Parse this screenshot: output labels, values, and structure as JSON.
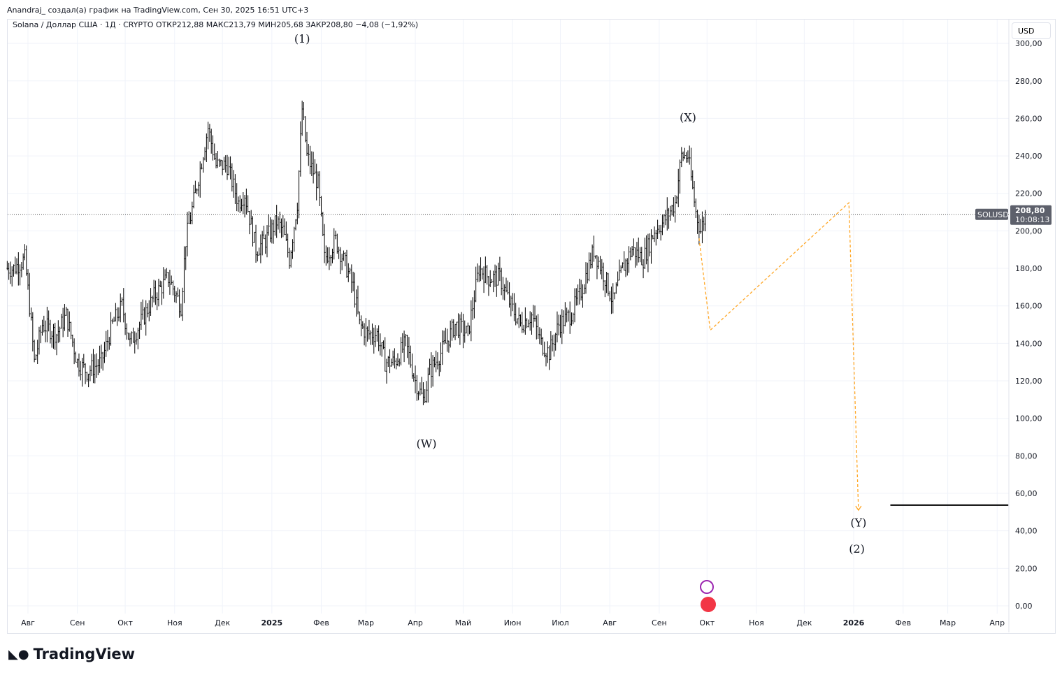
{
  "header": "Anandraj_ создал(а) график на TradingView.com, Сен 30, 2025 16:51 UTC+3",
  "legend": "Solana / Доллар США · 1Д · CRYPTO  ОТКР212,88  МАКС213,79  МИН205,68  ЗАКР208,80  −4,08 (−1,92%)",
  "currency": "USD",
  "logo": "TradingView",
  "chart_data": {
    "type": "ohlc-bar",
    "symbol": "SOLUSD",
    "last_price": "208,80",
    "countdown": "10:08:13",
    "x_unit": "days since 2024-08-01",
    "ylim": [
      0,
      300
    ],
    "y_ticks": [
      "0,00",
      "20,00",
      "40,00",
      "60,00",
      "80,00",
      "100,00",
      "120,00",
      "140,00",
      "160,00",
      "180,00",
      "200,00",
      "220,00",
      "240,00",
      "260,00",
      "280,00",
      "300,00"
    ],
    "x_ticks": [
      {
        "d": 0,
        "l": "Авг"
      },
      {
        "d": 31,
        "l": "Сен"
      },
      {
        "d": 61,
        "l": "Окт"
      },
      {
        "d": 92,
        "l": "Ноя"
      },
      {
        "d": 122,
        "l": "Дек"
      },
      {
        "d": 153,
        "l": "2025",
        "b": true
      },
      {
        "d": 184,
        "l": "Фев"
      },
      {
        "d": 212,
        "l": "Мар"
      },
      {
        "d": 243,
        "l": "Апр"
      },
      {
        "d": 273,
        "l": "Май"
      },
      {
        "d": 304,
        "l": "Июн"
      },
      {
        "d": 334,
        "l": "Июл"
      },
      {
        "d": 365,
        "l": "Авг"
      },
      {
        "d": 396,
        "l": "Сен"
      },
      {
        "d": 426,
        "l": "Окт"
      },
      {
        "d": 457,
        "l": "Ноя"
      },
      {
        "d": 487,
        "l": "Дек"
      },
      {
        "d": 518,
        "l": "2026",
        "b": true
      },
      {
        "d": 549,
        "l": "Фев"
      },
      {
        "d": 577,
        "l": "Мар"
      },
      {
        "d": 608,
        "l": "Апр"
      }
    ],
    "price_path": [
      [
        -13,
        180
      ],
      [
        -9,
        180
      ],
      [
        -2,
        185
      ],
      [
        1,
        160
      ],
      [
        4,
        130
      ],
      [
        9,
        150
      ],
      [
        18,
        145
      ],
      [
        24,
        155
      ],
      [
        31,
        130
      ],
      [
        37,
        125
      ],
      [
        46,
        130
      ],
      [
        53,
        150
      ],
      [
        59,
        160
      ],
      [
        64,
        140
      ],
      [
        70,
        150
      ],
      [
        79,
        165
      ],
      [
        88,
        175
      ],
      [
        96,
        160
      ],
      [
        99,
        195
      ],
      [
        105,
        220
      ],
      [
        113,
        255
      ],
      [
        118,
        235
      ],
      [
        125,
        235
      ],
      [
        132,
        215
      ],
      [
        136,
        220
      ],
      [
        143,
        190
      ],
      [
        149,
        195
      ],
      [
        156,
        205
      ],
      [
        160,
        200
      ],
      [
        164,
        185
      ],
      [
        169,
        215
      ],
      [
        172,
        265
      ],
      [
        175,
        240
      ],
      [
        182,
        225
      ],
      [
        186,
        185
      ],
      [
        193,
        195
      ],
      [
        200,
        180
      ],
      [
        204,
        170
      ],
      [
        208,
        150
      ],
      [
        213,
        145
      ],
      [
        219,
        145
      ],
      [
        224,
        130
      ],
      [
        230,
        130
      ],
      [
        237,
        140
      ],
      [
        243,
        120
      ],
      [
        248,
        110
      ],
      [
        252,
        125
      ],
      [
        259,
        135
      ],
      [
        268,
        150
      ],
      [
        276,
        145
      ],
      [
        283,
        180
      ],
      [
        289,
        175
      ],
      [
        296,
        175
      ],
      [
        303,
        160
      ],
      [
        309,
        150
      ],
      [
        316,
        155
      ],
      [
        322,
        140
      ],
      [
        327,
        135
      ],
      [
        333,
        150
      ],
      [
        340,
        155
      ],
      [
        346,
        165
      ],
      [
        355,
        190
      ],
      [
        362,
        175
      ],
      [
        367,
        162
      ],
      [
        373,
        180
      ],
      [
        379,
        190
      ],
      [
        386,
        185
      ],
      [
        393,
        200
      ],
      [
        399,
        205
      ],
      [
        406,
        215
      ],
      [
        410,
        240
      ],
      [
        414,
        240
      ],
      [
        419,
        210
      ],
      [
        422,
        200
      ],
      [
        425,
        208.8
      ]
    ],
    "projection": [
      [
        421,
        196
      ],
      [
        428,
        147
      ],
      [
        515,
        215
      ],
      [
        521,
        51
      ]
    ],
    "target_line": {
      "price": 53.7,
      "from": 541,
      "to": 615
    },
    "wave_labels": [
      {
        "t": "(1)",
        "d": 172,
        "p": 303
      },
      {
        "t": "(X)",
        "d": 414,
        "p": 261
      },
      {
        "t": "(W)",
        "d": 250,
        "p": 87
      },
      {
        "t": "(Y)",
        "d": 521,
        "p": 45
      },
      {
        "t": "(2)",
        "d": 520,
        "p": 31
      }
    ]
  }
}
